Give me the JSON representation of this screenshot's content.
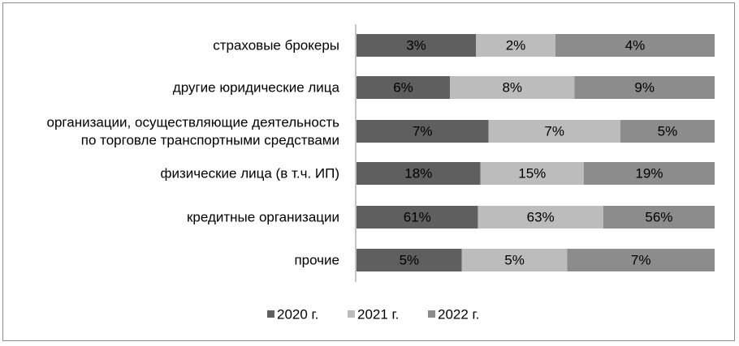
{
  "chart_data": {
    "type": "bar",
    "orientation": "horizontal",
    "stacked": true,
    "normalized": true,
    "categories": [
      [
        "страховые брокеры"
      ],
      [
        "другие юридические лица"
      ],
      [
        "организации, осуществляющие деятельность",
        "по торговле транспортными средствами"
      ],
      [
        "физические лица (в т.ч. ИП)"
      ],
      [
        "кредитные организации"
      ],
      [
        "прочие"
      ]
    ],
    "series": [
      {
        "name": "2020 г.",
        "color": "#5f5f5f",
        "values": [
          3,
          6,
          7,
          18,
          61,
          5
        ],
        "labels": [
          "3%",
          "6%",
          "7%",
          "18%",
          "61%",
          "5%"
        ]
      },
      {
        "name": "2021 г.",
        "color": "#bcbcbc",
        "values": [
          2,
          8,
          7,
          15,
          63,
          5
        ],
        "labels": [
          "2%",
          "8%",
          "7%",
          "15%",
          "63%",
          "5%"
        ]
      },
      {
        "name": "2022 г.",
        "color": "#8c8c8c",
        "values": [
          4,
          9,
          5,
          19,
          56,
          7
        ],
        "labels": [
          "4%",
          "9%",
          "5%",
          "19%",
          "56%",
          "7%"
        ]
      }
    ],
    "legend_position": "bottom",
    "grid": false
  }
}
